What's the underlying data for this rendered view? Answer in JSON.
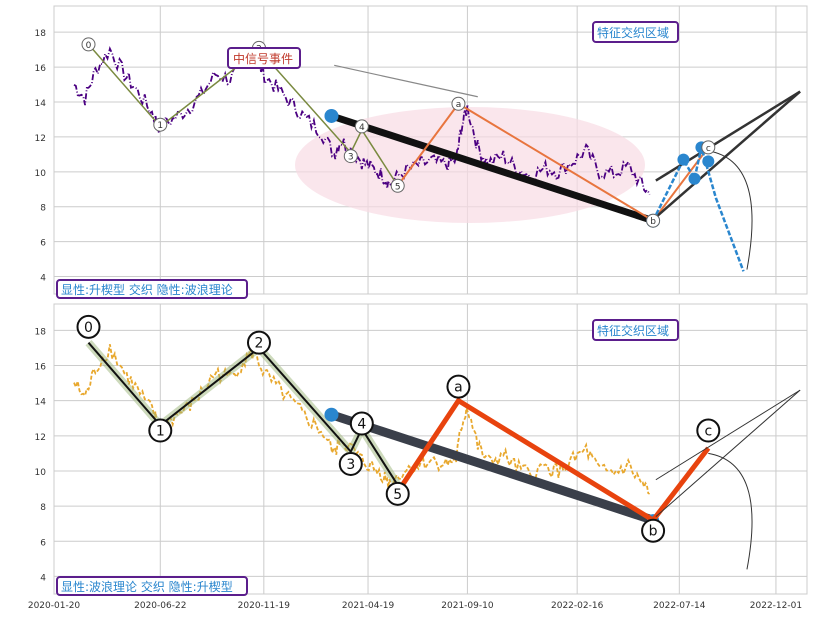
{
  "chart_data": [
    {
      "type": "line",
      "panel": "top",
      "ylim": [
        3,
        19.5
      ],
      "yticks": [
        4,
        6,
        8,
        10,
        12,
        14,
        16,
        18
      ],
      "grid": true,
      "series": [
        {
          "color": "#4B0082",
          "style": "dash-dot",
          "x": [
            "2020-02-18",
            "2020-03-05",
            "2020-03-20",
            "2020-04-10",
            "2020-05-01",
            "2020-05-20",
            "2020-06-10",
            "2020-06-20",
            "2020-07-10",
            "2020-08-01",
            "2020-08-20",
            "2020-09-10",
            "2020-10-01",
            "2020-10-20",
            "2020-11-05",
            "2020-11-20",
            "2020-12-10",
            "2021-01-01",
            "2021-01-20",
            "2021-02-10",
            "2021-03-01",
            "2021-03-10",
            "2021-03-25",
            "2021-04-10",
            "2021-04-25",
            "2021-05-10",
            "2021-05-20",
            "2021-06-10",
            "2021-07-01",
            "2021-07-20",
            "2021-08-10",
            "2021-08-25",
            "2021-09-01",
            "2021-09-10",
            "2021-09-25",
            "2021-10-10",
            "2021-11-01",
            "2021-11-20",
            "2021-12-10",
            "2022-01-01",
            "2022-01-20",
            "2022-02-10",
            "2022-03-01",
            "2022-03-20",
            "2022-04-10",
            "2022-05-01",
            "2022-05-20",
            "2022-06-01"
          ],
          "y": [
            15.0,
            14.2,
            15.8,
            17.0,
            15.6,
            14.6,
            13.4,
            12.6,
            13.0,
            13.6,
            14.4,
            15.6,
            15.3,
            16.2,
            16.8,
            15.5,
            14.7,
            13.8,
            13.0,
            12.3,
            11.0,
            11.8,
            11.3,
            10.6,
            10.2,
            9.8,
            9.3,
            10.0,
            10.4,
            10.6,
            10.4,
            10.7,
            12.5,
            13.7,
            11.4,
            10.5,
            10.9,
            10.2,
            9.8,
            10.2,
            10.0,
            10.6,
            11.2,
            10.0,
            9.9,
            10.3,
            9.3,
            8.7
          ]
        }
      ],
      "wave_labels": [
        {
          "label": "0",
          "x": "2020-03-10",
          "y": 17.3
        },
        {
          "label": "1",
          "x": "2020-06-22",
          "y": 12.7
        },
        {
          "label": "2",
          "x": "2020-11-12",
          "y": 17.1
        },
        {
          "label": "3",
          "x": "2021-03-25",
          "y": 10.9
        },
        {
          "label": "4",
          "x": "2021-04-10",
          "y": 12.6
        },
        {
          "label": "5",
          "x": "2021-06-01",
          "y": 9.2
        },
        {
          "label": "a",
          "x": "2021-08-28",
          "y": 13.9
        },
        {
          "label": "b",
          "x": "2022-06-06",
          "y": 7.2
        },
        {
          "label": "c",
          "x": "2022-08-25",
          "y": 11.4
        }
      ],
      "annotations": [
        {
          "text": "中信号事件",
          "x": "2020-12-30",
          "y": 16.5
        },
        {
          "text": "特征交织区域",
          "x": "2022-07-10",
          "y": 17.8
        },
        {
          "text": "显性:升楔型 交织 隐性:波浪理论",
          "x": "2020-02-02",
          "y": 3.5
        }
      ]
    },
    {
      "type": "line",
      "panel": "bottom",
      "ylim": [
        3,
        19.5
      ],
      "yticks": [
        4,
        6,
        8,
        10,
        12,
        14,
        16,
        18
      ],
      "grid": true,
      "series": [
        {
          "color": "#E8A82E",
          "style": "dashed",
          "x": [
            "2020-02-18",
            "2020-03-05",
            "2020-03-20",
            "2020-04-10",
            "2020-05-01",
            "2020-05-20",
            "2020-06-10",
            "2020-06-20",
            "2020-07-10",
            "2020-08-01",
            "2020-08-20",
            "2020-09-10",
            "2020-10-01",
            "2020-10-20",
            "2020-11-05",
            "2020-11-20",
            "2020-12-10",
            "2021-01-01",
            "2021-01-20",
            "2021-02-10",
            "2021-03-01",
            "2021-03-10",
            "2021-03-25",
            "2021-04-10",
            "2021-04-25",
            "2021-05-10",
            "2021-05-20",
            "2021-06-10",
            "2021-07-01",
            "2021-07-20",
            "2021-08-10",
            "2021-08-25",
            "2021-09-01",
            "2021-09-10",
            "2021-09-25",
            "2021-10-10",
            "2021-11-01",
            "2021-11-20",
            "2021-12-10",
            "2022-01-01",
            "2022-01-20",
            "2022-02-10",
            "2022-03-01",
            "2022-03-20",
            "2022-04-10",
            "2022-05-01",
            "2022-05-20",
            "2022-06-01"
          ],
          "y": [
            15.0,
            14.2,
            15.8,
            17.0,
            15.6,
            14.6,
            13.4,
            12.6,
            13.0,
            13.6,
            14.4,
            15.6,
            15.3,
            16.2,
            16.8,
            15.5,
            14.7,
            13.8,
            13.0,
            12.3,
            11.0,
            11.8,
            11.3,
            10.6,
            10.2,
            9.8,
            9.3,
            10.0,
            10.4,
            10.6,
            10.4,
            10.7,
            12.5,
            13.7,
            11.4,
            10.5,
            10.9,
            10.2,
            9.8,
            10.2,
            10.0,
            10.6,
            11.2,
            10.0,
            9.9,
            10.3,
            9.3,
            8.7
          ]
        }
      ],
      "wave_labels": [
        {
          "label": "0",
          "x": "2020-03-10",
          "y": 18.2
        },
        {
          "label": "1",
          "x": "2020-06-22",
          "y": 12.3
        },
        {
          "label": "2",
          "x": "2020-11-12",
          "y": 17.3
        },
        {
          "label": "3",
          "x": "2021-03-25",
          "y": 10.4
        },
        {
          "label": "4",
          "x": "2021-04-10",
          "y": 12.7
        },
        {
          "label": "5",
          "x": "2021-06-01",
          "y": 8.7
        },
        {
          "label": "a",
          "x": "2021-08-28",
          "y": 14.8
        },
        {
          "label": "b",
          "x": "2022-06-06",
          "y": 6.6
        },
        {
          "label": "c",
          "x": "2022-08-25",
          "y": 12.3
        }
      ],
      "annotations": [
        {
          "text": "特征交织区域",
          "x": "2022-07-10",
          "y": 17.8
        },
        {
          "text": "显性:波浪理论 交织 隐性:升楔型",
          "x": "2020-02-02",
          "y": 3.5
        }
      ]
    }
  ],
  "xaxis": {
    "range": [
      "2020-01-20",
      "2023-01-15"
    ],
    "tick_labels": [
      "2020-01-20",
      "2020-06-22",
      "2020-11-19",
      "2021-04-19",
      "2021-09-10",
      "2022-02-16",
      "2022-07-14",
      "2022-12-01"
    ]
  },
  "labels": {
    "top_legend": "显性:升楔型 交织 隐性:波浪理论",
    "bottom_legend": "显性:波浪理论 交织 隐性:升楔型",
    "top_region": "特征交织区域",
    "bottom_region": "特征交织区域",
    "signal_event": "中信号事件",
    "y_ticks": [
      "4",
      "6",
      "8",
      "10",
      "12",
      "14",
      "16",
      "18"
    ]
  },
  "colors": {
    "purple_price": "#4B0082",
    "yellow_price": "#E8A82E",
    "orange_wave": "#E8430E",
    "blue_dot": "#2A86CE",
    "annotation_border": "#5B1E8C",
    "annotation_text": "#2A86CE",
    "signal_text": "#C0392B",
    "ellipse": "#F8DCE4"
  }
}
